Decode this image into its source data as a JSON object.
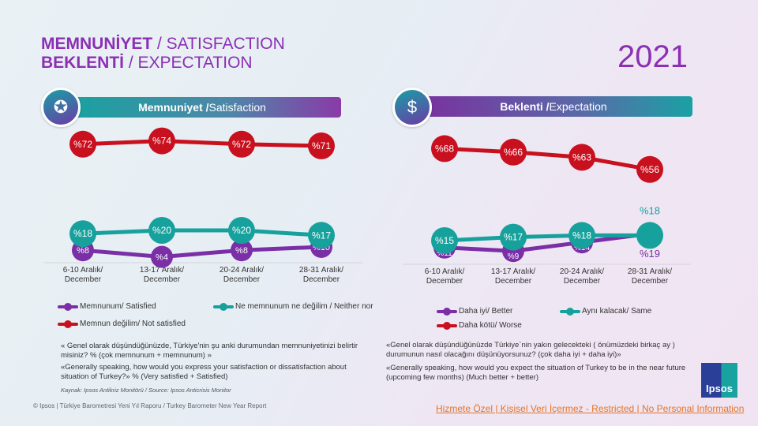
{
  "header": {
    "title1_bold": "MEMNUNİYET",
    "title1_rest": " / SATISFACTION",
    "title2_bold": "BEKLENTİ",
    "title2_rest": " / EXPECTATION",
    "year": "2021"
  },
  "left": {
    "banner_bold": "Memnuniyet /",
    "banner_rest": " Satisfaction",
    "icon": "award-hand-icon",
    "legend": [
      "Memnunum/ Satisfied",
      "Ne memnunum ne değilim / Neither nor",
      "Memnun değilim/ Not satisfied"
    ],
    "question_tr": "« Genel olarak düşündüğünüzde, Türkiye'nin şu anki durumundan memnuniyetinizi belirtir misiniz?  % (çok memnunum + memnunum) »",
    "question_en": "«Generally speaking, how would you express your satisfaction or dissatisfaction about situation of Turkey?» % (Very satisfied + Satisfied)",
    "source": "Kaynak: Ipsos Antikriz Monitörü / Source: Ipsos Anticrisis Monitor"
  },
  "right": {
    "banner_bold": "Beklenti /",
    "banner_rest": " Expectation",
    "icon": "money-hand-icon",
    "legend": [
      "Daha iyi/ Better",
      "Aynı kalacak/ Same",
      "Daha kötü/ Worse"
    ],
    "question_tr": "«Genel olarak düşündüğünüzde Türkiye`nin yakın gelecekteki ( önümüzdeki birkaç ay ) durumunun nasıl olacağını düşünüyorsunuz? (çok daha iyi + daha iyi)»",
    "question_en": "«Generally speaking, how would you expect the situation of Turkey to be in the near future (upcoming few months) (Much better + better)"
  },
  "footer": {
    "copyright": "© Ipsos | Türkiye Barometresi Yeni Yıl Raporu / Turkey Barometer New Year Report",
    "restricted": "Hizmete Özel | Kişisel Veri İçermez - Restricted | No Personal Information",
    "logo": "Ipsos"
  },
  "colors": {
    "purple": "#7b2fa6",
    "teal": "#17a19c",
    "red": "#c8101e"
  },
  "chart_data": [
    {
      "type": "line",
      "categories": [
        "6-10 Aralık/ December",
        "13-17 Aralık/ December",
        "20-24 Aralık/ December",
        "28-31 Aralık/ December"
      ],
      "value_prefix": "%",
      "series": [
        {
          "name": "Memnunum/ Satisfied",
          "color": "#7b2fa6",
          "values": [
            8,
            4,
            8,
            10
          ]
        },
        {
          "name": "Ne memnunum ne değilim / Neither nor",
          "color": "#17a19c",
          "values": [
            18,
            20,
            20,
            17
          ]
        },
        {
          "name": "Memnun değilim/ Not satisfied",
          "color": "#c8101e",
          "values": [
            72,
            74,
            72,
            71
          ]
        }
      ]
    },
    {
      "type": "line",
      "categories": [
        "6-10 Aralık/ December",
        "13-17 Aralık/ December",
        "20-24 Aralık/ December",
        "28-31 Aralık/ December"
      ],
      "value_prefix": "%",
      "series": [
        {
          "name": "Daha iyi/ Better",
          "color": "#7b2fa6",
          "values": [
            11,
            9,
            14,
            19
          ]
        },
        {
          "name": "Aynı kalacak/ Same",
          "color": "#17a19c",
          "values": [
            15,
            17,
            18,
            18
          ]
        },
        {
          "name": "Daha kötü/ Worse",
          "color": "#c8101e",
          "values": [
            68,
            66,
            63,
            56
          ]
        }
      ]
    }
  ]
}
